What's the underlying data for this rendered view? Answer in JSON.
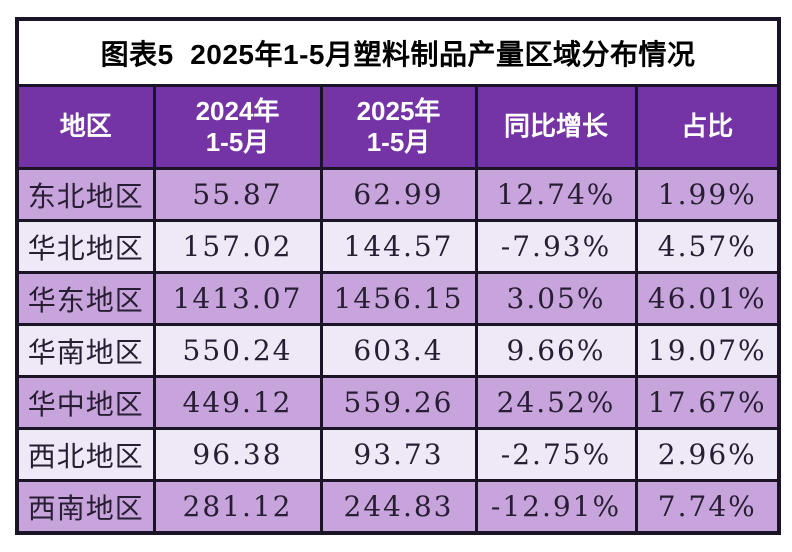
{
  "title": "图表5  2025年1-5月塑料制品产量区域分布情况",
  "colors": {
    "header_bg": "#7434a6",
    "header_text": "#ffffff",
    "row_dark_bg": "#c8a4dd",
    "row_light_bg": "#efe8f6",
    "border": "#1b1426",
    "body_text": "#281e33",
    "title_text": "#000000",
    "page_bg": "#ffffff"
  },
  "table": {
    "columns": [
      {
        "line1": "地区",
        "line2": ""
      },
      {
        "line1": "2024年",
        "line2": "1-5月"
      },
      {
        "line1": "2025年",
        "line2": "1-5月"
      },
      {
        "line1": "同比增长",
        "line2": ""
      },
      {
        "line1": "占比",
        "line2": ""
      }
    ],
    "rows": [
      {
        "region": "东北地区",
        "v2024": "55.87",
        "v2025": "62.99",
        "yoy": "12.74%",
        "share": "1.99%"
      },
      {
        "region": "华北地区",
        "v2024": "157.02",
        "v2025": "144.57",
        "yoy": "-7.93%",
        "share": "4.57%"
      },
      {
        "region": "华东地区",
        "v2024": "1413.07",
        "v2025": "1456.15",
        "yoy": "3.05%",
        "share": "46.01%"
      },
      {
        "region": "华南地区",
        "v2024": "550.24",
        "v2025": "603.4",
        "yoy": "9.66%",
        "share": "19.07%"
      },
      {
        "region": "华中地区",
        "v2024": "449.12",
        "v2025": "559.26",
        "yoy": "24.52%",
        "share": "17.67%"
      },
      {
        "region": "西北地区",
        "v2024": "96.38",
        "v2025": "93.73",
        "yoy": "-2.75%",
        "share": "2.96%"
      },
      {
        "region": "西南地区",
        "v2024": "281.12",
        "v2025": "244.83",
        "yoy": "-12.91%",
        "share": "7.74%"
      }
    ]
  },
  "chart_data": {
    "type": "table",
    "title": "图表5 2025年1-5月塑料制品产量区域分布情况",
    "columns": [
      "地区",
      "2024年1-5月",
      "2025年1-5月",
      "同比增长",
      "占比"
    ],
    "rows": [
      [
        "东北地区",
        55.87,
        62.99,
        "12.74%",
        "1.99%"
      ],
      [
        "华北地区",
        157.02,
        144.57,
        "-7.93%",
        "4.57%"
      ],
      [
        "华东地区",
        1413.07,
        1456.15,
        "3.05%",
        "46.01%"
      ],
      [
        "华南地区",
        550.24,
        603.4,
        "9.66%",
        "19.07%"
      ],
      [
        "华中地区",
        449.12,
        559.26,
        "24.52%",
        "17.67%"
      ],
      [
        "西北地区",
        96.38,
        93.73,
        "-2.75%",
        "2.96%"
      ],
      [
        "西南地区",
        281.12,
        244.83,
        "-12.91%",
        "7.74%"
      ]
    ]
  }
}
